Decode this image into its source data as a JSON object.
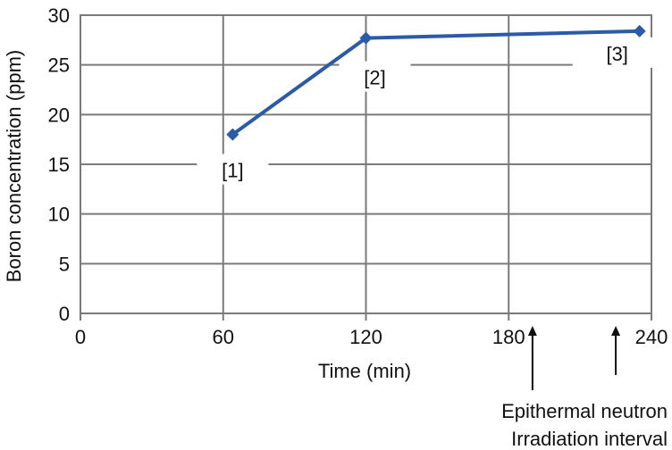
{
  "chart_data": {
    "type": "line",
    "xlabel": "Time (min)",
    "ylabel": "Boron concentration (ppm)",
    "xlim": [
      0,
      240
    ],
    "ylim": [
      0,
      30
    ],
    "x_ticks": [
      0,
      60,
      120,
      180,
      240
    ],
    "y_ticks": [
      0,
      5,
      10,
      15,
      20,
      25,
      30
    ],
    "grid": true,
    "series": [
      {
        "color": "#2a5aa8",
        "x": [
          64,
          120,
          235
        ],
        "y": [
          18.0,
          27.7,
          28.4
        ],
        "point_labels": [
          "[1]",
          "[2]",
          "[3]"
        ]
      }
    ],
    "annotations": [
      {
        "x": 190,
        "lines": [
          "Epithermal neutron",
          "Irradiation interval"
        ]
      },
      {
        "x": 225,
        "lines": []
      }
    ]
  }
}
